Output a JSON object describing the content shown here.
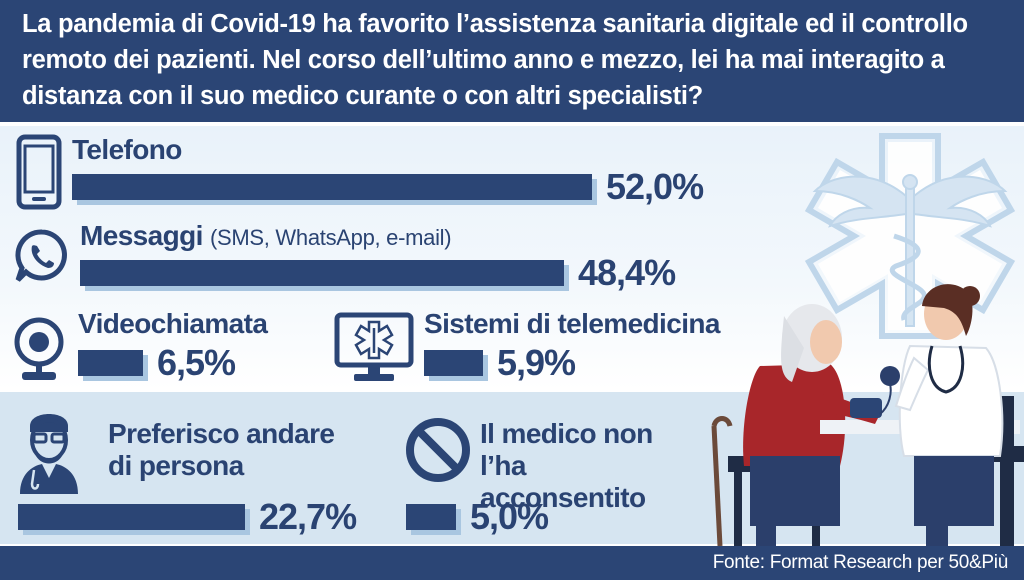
{
  "title": "La pandemia di Covid-19 ha favorito l’assistenza sanitaria digitale ed il controllo remoto dei pazienti. Nel corso dell’ultimo anno e mezzo, lei ha mai interagito a distanza con il suo medico curante o con altri specialisti?",
  "source": "Fonte: Format Research per 50&Più",
  "colors": {
    "bar": "#2b4575",
    "bar_shadow": "#a9c6e0",
    "header": "#2b4575",
    "band": "#d6e5f1"
  },
  "chart_data": {
    "type": "bar",
    "orientation": "horizontal",
    "unit": "%",
    "title": "La pandemia di Covid-19 ha favorito l’assistenza sanitaria digitale ed il controllo remoto dei pazienti. Nel corso dell’ultimo anno e mezzo, lei ha mai interagito a distanza con il suo medico curante o con altri specialisti?",
    "categories": [
      "Telefono",
      "Messaggi",
      "Videochiamata",
      "Sistemi di telemedicina",
      "Preferisco andare di persona",
      "Il medico non l’ha acconsentito"
    ],
    "values": [
      52.0,
      48.4,
      6.5,
      5.9,
      22.7,
      5.0
    ],
    "value_labels": [
      "52,0%",
      "48,4%",
      "6,5%",
      "5,9%",
      "22,7%",
      "5,0%"
    ],
    "sublabels": [
      "",
      "(SMS, WhatsApp, e-mail)",
      "",
      "",
      "",
      ""
    ],
    "icons": [
      "smartphone-icon",
      "whatsapp-icon",
      "webcam-icon",
      "monitor-caduceus-icon",
      "doctor-icon",
      "prohibited-icon"
    ]
  }
}
